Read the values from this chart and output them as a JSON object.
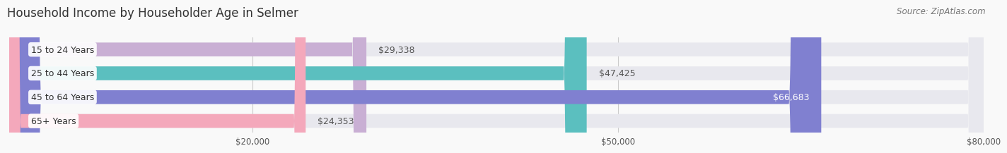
{
  "title": "Household Income by Householder Age in Selmer",
  "source": "Source: ZipAtlas.com",
  "categories": [
    "15 to 24 Years",
    "25 to 44 Years",
    "45 to 64 Years",
    "65+ Years"
  ],
  "values": [
    29338,
    47425,
    66683,
    24353
  ],
  "labels": [
    "$29,338",
    "$47,425",
    "$66,683",
    "$24,353"
  ],
  "bar_colors": [
    "#c9afd4",
    "#5bbfbf",
    "#8080d0",
    "#f4a8bb"
  ],
  "bar_bg_color": "#e8e8ee",
  "xmax": 80000,
  "xticks": [
    0,
    20000,
    50000,
    80000
  ],
  "xticklabels": [
    "",
    "$20,000",
    "$50,000",
    "$80,000"
  ],
  "title_fontsize": 12,
  "source_fontsize": 8.5,
  "label_fontsize": 9,
  "category_fontsize": 9,
  "background_color": "#f9f9f9",
  "bar_height": 0.58
}
